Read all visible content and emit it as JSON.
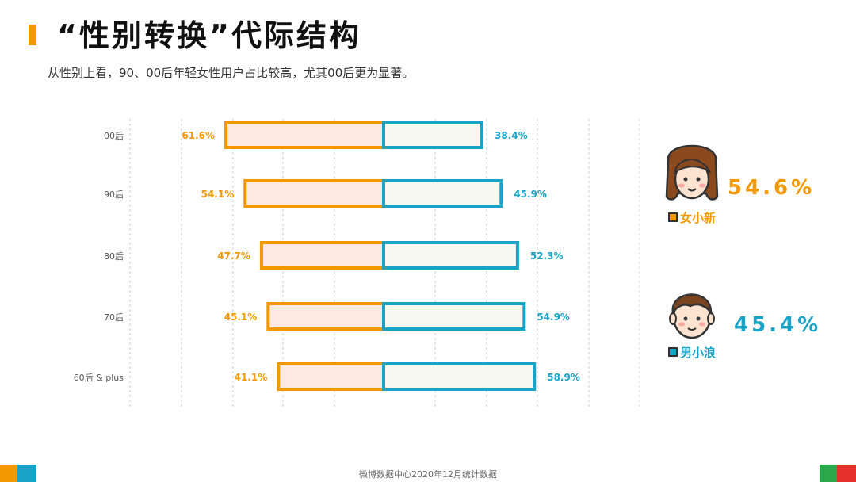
{
  "title": "“性别转换”代际结构",
  "subtitle": "从性别上看，90、00后年轻女性用户占比较高，尤其00后更为显著。",
  "footer": "微博数据中心2020年12月统计数据",
  "colors": {
    "female": "#f39800",
    "female_fill": "#fde9e2",
    "male": "#1aa3c8",
    "male_fill": "#f6f8ef",
    "accent_orange": "#f39800",
    "accent_blue": "#1aa3c8",
    "accent_green": "#2aa84a",
    "accent_red": "#e5312b"
  },
  "legend": {
    "female": {
      "label": "女小新",
      "value": "54.6%",
      "icon": "girl-face-icon"
    },
    "male": {
      "label": "男小浪",
      "value": "45.4%",
      "icon": "boy-face-icon"
    }
  },
  "chart_data": {
    "type": "bar",
    "orientation": "horizontal-diverging",
    "categories": [
      "00后",
      "90后",
      "80后",
      "70后",
      "60后 & plus"
    ],
    "series": [
      {
        "name": "女小新",
        "values": [
          61.6,
          54.1,
          47.7,
          45.1,
          41.1
        ],
        "labels": [
          "61.6%",
          "54.1%",
          "47.7%",
          "45.1%",
          "41.1%"
        ]
      },
      {
        "name": "男小浪",
        "values": [
          38.4,
          45.9,
          52.3,
          54.9,
          58.9
        ],
        "labels": [
          "38.4%",
          "45.9%",
          "52.3%",
          "54.9%",
          "58.9%"
        ]
      }
    ],
    "grid": true
  }
}
